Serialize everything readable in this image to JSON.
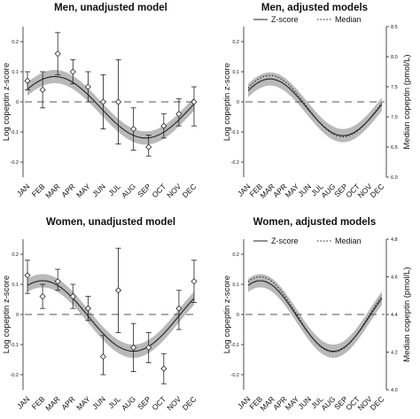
{
  "chart_data": [
    {
      "id": "men-unadjusted",
      "type": "line",
      "title": "Men, unadjusted model",
      "ylabel": "Log copeptin z-score",
      "ylim": [
        -0.25,
        0.25
      ],
      "yticks": [
        -0.2,
        -0.1,
        0,
        0.1,
        0.2
      ],
      "ytick_labels": [
        "-0.2",
        "-0.1",
        "0",
        "0.1",
        "0.2"
      ],
      "categories": [
        "JAN",
        "FEB",
        "MAR",
        "APR",
        "MAY",
        "JUN",
        "JUL",
        "AUG",
        "SEP",
        "OCT",
        "NOV",
        "DEC"
      ],
      "curve": {
        "mean": -0.018,
        "amplitude": 0.102,
        "peak_month": 2.8
      },
      "band_halfwidth": 0.022,
      "reference_line": 0,
      "points": [
        {
          "month": "JAN",
          "value": 0.07,
          "lo": 0.04,
          "hi": 0.1
        },
        {
          "month": "FEB",
          "value": 0.04,
          "lo": -0.02,
          "hi": 0.1
        },
        {
          "month": "MAR",
          "value": 0.16,
          "lo": 0.09,
          "hi": 0.23
        },
        {
          "month": "APR",
          "value": 0.1,
          "lo": 0.06,
          "hi": 0.14
        },
        {
          "month": "MAY",
          "value": 0.05,
          "lo": 0.0,
          "hi": 0.1
        },
        {
          "month": "JUN",
          "value": 0.0,
          "lo": -0.09,
          "hi": 0.09
        },
        {
          "month": "JUL",
          "value": 0.0,
          "lo": -0.14,
          "hi": 0.14
        },
        {
          "month": "AUG",
          "value": -0.09,
          "lo": -0.16,
          "hi": -0.02
        },
        {
          "month": "SEP",
          "value": -0.15,
          "lo": -0.18,
          "hi": -0.11
        },
        {
          "month": "OCT",
          "value": -0.08,
          "lo": -0.12,
          "hi": -0.04
        },
        {
          "month": "NOV",
          "value": -0.04,
          "lo": -0.08,
          "hi": 0.01
        },
        {
          "month": "DEC",
          "value": 0.0,
          "lo": -0.08,
          "hi": 0.05
        }
      ]
    },
    {
      "id": "men-adjusted",
      "type": "line",
      "title": "Men, adjusted models",
      "ylabel": "Log copeptin z-score",
      "y2label": "Median copeptin (pmol/L)",
      "ylim": [
        -0.25,
        0.25
      ],
      "yticks": [
        -0.2,
        -0.1,
        0,
        0.1,
        0.2
      ],
      "ytick_labels": [
        "-0.2",
        "-0.1",
        "0",
        "0.1",
        "0.2"
      ],
      "y2lim": [
        6.0,
        8.5
      ],
      "y2ticks": [
        6.0,
        6.5,
        7.0,
        7.5,
        8.0,
        8.5
      ],
      "y2tick_labels": [
        "6.0",
        "6.5",
        "7.0",
        "7.5",
        "8.0",
        "8.5"
      ],
      "categories": [
        "JAN",
        "FEB",
        "MAR",
        "APR",
        "MAY",
        "JUN",
        "JUL",
        "AUG",
        "SEP",
        "OCT",
        "NOV",
        "DEC"
      ],
      "series": [
        {
          "name": "Z-score",
          "style": "solid",
          "mean": -0.018,
          "amplitude": 0.094,
          "peak_month": 2.8
        },
        {
          "name": "Median",
          "style": "dotted",
          "mean": -0.014,
          "amplitude": 0.102,
          "peak_month": 2.8
        }
      ],
      "band_halfwidth": 0.022,
      "reference_line": 0
    },
    {
      "id": "women-unadjusted",
      "type": "line",
      "title": "Women, unadjusted model",
      "ylabel": "Log copeptin z-score",
      "ylim": [
        -0.25,
        0.25
      ],
      "yticks": [
        -0.2,
        -0.1,
        0,
        0.1,
        0.2
      ],
      "ytick_labels": [
        "-0.2",
        "-0.1",
        "0",
        "0.1",
        "0.2"
      ],
      "categories": [
        "JAN",
        "FEB",
        "MAR",
        "APR",
        "MAY",
        "JUN",
        "JUL",
        "AUG",
        "SEP",
        "OCT",
        "NOV",
        "DEC"
      ],
      "curve": {
        "mean": -0.005,
        "amplitude": 0.117,
        "peak_month": 2.0
      },
      "band_halfwidth": 0.022,
      "reference_line": 0,
      "points": [
        {
          "month": "JAN",
          "value": 0.13,
          "lo": 0.07,
          "hi": 0.18
        },
        {
          "month": "FEB",
          "value": 0.06,
          "lo": 0.02,
          "hi": 0.1
        },
        {
          "month": "MAR",
          "value": 0.11,
          "lo": 0.08,
          "hi": 0.15
        },
        {
          "month": "APR",
          "value": 0.06,
          "lo": 0.02,
          "hi": 0.1
        },
        {
          "month": "MAY",
          "value": 0.02,
          "lo": -0.02,
          "hi": 0.06
        },
        {
          "month": "JUN",
          "value": -0.14,
          "lo": -0.2,
          "hi": -0.07
        },
        {
          "month": "JUL",
          "value": 0.08,
          "lo": -0.06,
          "hi": 0.22
        },
        {
          "month": "AUG",
          "value": -0.11,
          "lo": -0.19,
          "hi": -0.03
        },
        {
          "month": "SEP",
          "value": -0.11,
          "lo": -0.16,
          "hi": -0.06
        },
        {
          "month": "OCT",
          "value": -0.18,
          "lo": -0.23,
          "hi": -0.13
        },
        {
          "month": "NOV",
          "value": 0.02,
          "lo": -0.05,
          "hi": 0.08
        },
        {
          "month": "DEC",
          "value": 0.11,
          "lo": 0.04,
          "hi": 0.18
        }
      ]
    },
    {
      "id": "women-adjusted",
      "type": "line",
      "title": "Women, adjusted models",
      "ylabel": "Log copeptin z-score",
      "y2label": "Median copeptin (pmol/L)",
      "ylim": [
        -0.25,
        0.25
      ],
      "yticks": [
        -0.2,
        -0.1,
        0,
        0.1,
        0.2
      ],
      "ytick_labels": [
        "-0.2",
        "-0.1",
        "0",
        "0.1",
        "0.2"
      ],
      "y2lim": [
        4.0,
        4.8
      ],
      "y2ticks": [
        4.0,
        4.2,
        4.4,
        4.6,
        4.8
      ],
      "y2tick_labels": [
        "4.0",
        "4.2",
        "4.4",
        "4.6",
        "4.8"
      ],
      "categories": [
        "JAN",
        "FEB",
        "MAR",
        "APR",
        "MAY",
        "JUN",
        "JUL",
        "AUG",
        "SEP",
        "OCT",
        "NOV",
        "DEC"
      ],
      "series": [
        {
          "name": "Z-score",
          "style": "solid",
          "mean": -0.005,
          "amplitude": 0.117,
          "peak_month": 2.0
        },
        {
          "name": "Median",
          "style": "dotted",
          "mean": 0.0,
          "amplitude": 0.125,
          "peak_month": 2.0
        }
      ],
      "band_halfwidth": 0.022,
      "reference_line": 0
    }
  ]
}
